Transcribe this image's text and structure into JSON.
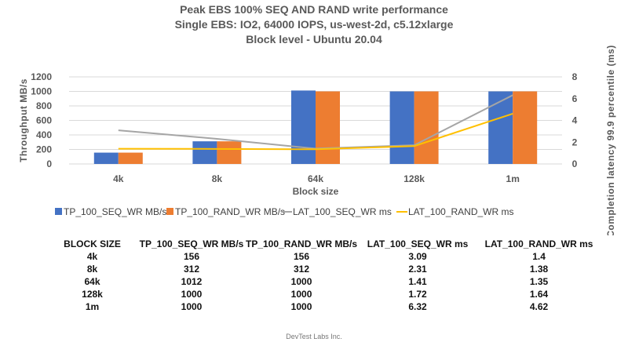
{
  "chart_data": {
    "type": "bar+line",
    "title": [
      "Peak EBS 100% SEQ AND RAND write performance",
      "Single EBS: IO2, 64000 IOPS, us-west-2d, c5.12xlarge",
      "Block level - Ubuntu 20.04"
    ],
    "xlabel": "Block size",
    "ylabel": "Throughput MB/s",
    "y2label": "Completion latency 99.9 percentile (ms)",
    "ylim": [
      0,
      1200
    ],
    "yticks": [
      0,
      200,
      400,
      600,
      800,
      1000,
      1200
    ],
    "y2lim": [
      0,
      8
    ],
    "y2ticks": [
      0,
      2,
      4,
      6,
      8
    ],
    "grid": true,
    "legend": "bottom",
    "categories": [
      "4k",
      "8k",
      "64k",
      "128k",
      "1m"
    ],
    "series": [
      {
        "name": "TP_100_SEQ_WR MB/s",
        "type": "bar",
        "axis": "left",
        "color": "#4472C4",
        "values": [
          156,
          312,
          1012,
          1000,
          1000
        ]
      },
      {
        "name": "TP_100_RAND_WR MB/s",
        "type": "bar",
        "axis": "left",
        "color": "#ED7D31",
        "values": [
          156,
          312,
          1000,
          1000,
          1000
        ]
      },
      {
        "name": "LAT_100_SEQ_WR ms",
        "type": "line",
        "axis": "right",
        "color": "#A5A5A5",
        "values": [
          3.09,
          2.31,
          1.41,
          1.72,
          6.32
        ]
      },
      {
        "name": "LAT_100_RAND_WR ms",
        "type": "line",
        "axis": "right",
        "color": "#FFC000",
        "values": [
          1.4,
          1.38,
          1.35,
          1.64,
          4.62
        ]
      }
    ]
  },
  "table": {
    "headers": [
      "BLOCK SIZE",
      "TP_100_SEQ_WR MB/s",
      "TP_100_RAND_WR MB/s",
      "LAT_100_SEQ_WR ms",
      "LAT_100_RAND_WR ms"
    ],
    "rows": [
      [
        "4k",
        "156",
        "156",
        "3.09",
        "1.4"
      ],
      [
        "8k",
        "312",
        "312",
        "2.31",
        "1.38"
      ],
      [
        "64k",
        "1012",
        "1000",
        "1.41",
        "1.35"
      ],
      [
        "128k",
        "1000",
        "1000",
        "1.72",
        "1.64"
      ],
      [
        "1m",
        "1000",
        "1000",
        "6.32",
        "4.62"
      ]
    ]
  },
  "footer": "DevTest Labs Inc."
}
